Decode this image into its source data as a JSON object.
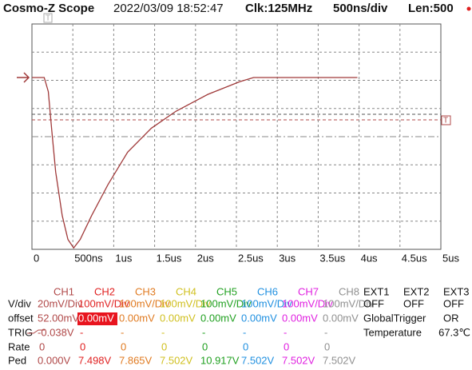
{
  "header": {
    "title": "Cosmo-Z Scope",
    "datetime": "2022/03/09 18:52:47",
    "clock": "Clk:125MHz",
    "timebase": "500ns/div",
    "length": "Len:500"
  },
  "chart_data": {
    "type": "line",
    "x": [
      0,
      0.15,
      0.2,
      0.24,
      0.29,
      0.37,
      0.44,
      0.51,
      0.59,
      0.73,
      0.93,
      1.17,
      1.46,
      1.76,
      2.15,
      2.54,
      2.71,
      3.98
    ],
    "series": [
      {
        "name": "CH1",
        "color": "#a03a3a",
        "values": [
          42,
          42,
          32,
          6,
          -25,
          -56,
          -73,
          -79,
          -73,
          -56,
          -34,
          -11,
          6,
          18,
          30,
          39,
          42,
          42
        ]
      }
    ],
    "xlim": [
      0,
      5
    ],
    "ylim": [
      -80,
      80
    ],
    "xticks": [
      0,
      {
        "value": 0.5,
        "label": "500ns"
      },
      {
        "value": 1,
        "label": "1us"
      },
      {
        "value": 1.5,
        "label": "1.5us"
      },
      {
        "value": 2,
        "label": "2us"
      },
      {
        "value": 2.5,
        "label": "2.5us"
      },
      {
        "value": 3,
        "label": "3us"
      },
      {
        "value": 3.5,
        "label": "3.5us"
      },
      {
        "value": 4,
        "label": "4us"
      },
      {
        "value": 4.5,
        "label": "4.5us"
      },
      {
        "value": 5,
        "label": "5us"
      }
    ],
    "grid": true
  },
  "row_labels": [
    "V/div",
    "offset",
    "TRIG",
    "Rate",
    "Ped"
  ],
  "channels": [
    {
      "name": "CH1",
      "color": "#b04848",
      "vdiv": "20mV/Div",
      "offset": "52.00mV",
      "trig": "-0.038V",
      "rate": 0,
      "ped": "0.000V"
    },
    {
      "name": "CH2",
      "color": "#e02020",
      "vdiv": "100mV/Div",
      "offset": "0.00mV",
      "trig": "-",
      "rate": 0,
      "ped": "7.498V"
    },
    {
      "name": "CH3",
      "color": "#e07a20",
      "vdiv": "100mV/Div",
      "offset": "0.00mV",
      "trig": "-",
      "rate": 0,
      "ped": "7.865V"
    },
    {
      "name": "CH4",
      "color": "#d0c020",
      "vdiv": "100mV/Div",
      "offset": "0.00mV",
      "trig": "-",
      "rate": 0,
      "ped": "7.502V"
    },
    {
      "name": "CH5",
      "color": "#20a020",
      "vdiv": "100mV/Div",
      "offset": "0.00mV",
      "trig": "-",
      "rate": 0,
      "ped": "10.917V"
    },
    {
      "name": "CH6",
      "color": "#2090e0",
      "vdiv": "100mV/Div",
      "offset": "0.00mV",
      "trig": "-",
      "rate": 0,
      "ped": "7.502V"
    },
    {
      "name": "CH7",
      "color": "#e020e0",
      "vdiv": "100mV/Div",
      "offset": "0.00mV",
      "trig": "-",
      "rate": 0,
      "ped": "7.502V"
    },
    {
      "name": "CH8",
      "color": "#909090",
      "vdiv": "100mV/Div",
      "offset": "0.00mV",
      "trig": "-",
      "rate": 0,
      "ped": "7.502V"
    }
  ],
  "ext": [
    {
      "name": "EXT1",
      "state": "OFF"
    },
    {
      "name": "EXT2",
      "state": "OFF"
    },
    {
      "name": "EXT3",
      "state": "OFF"
    }
  ],
  "global_trigger": {
    "label": "GlobalTrigger",
    "value": "OR"
  },
  "temperature": {
    "label": "Temperature",
    "value": "67.3℃"
  }
}
